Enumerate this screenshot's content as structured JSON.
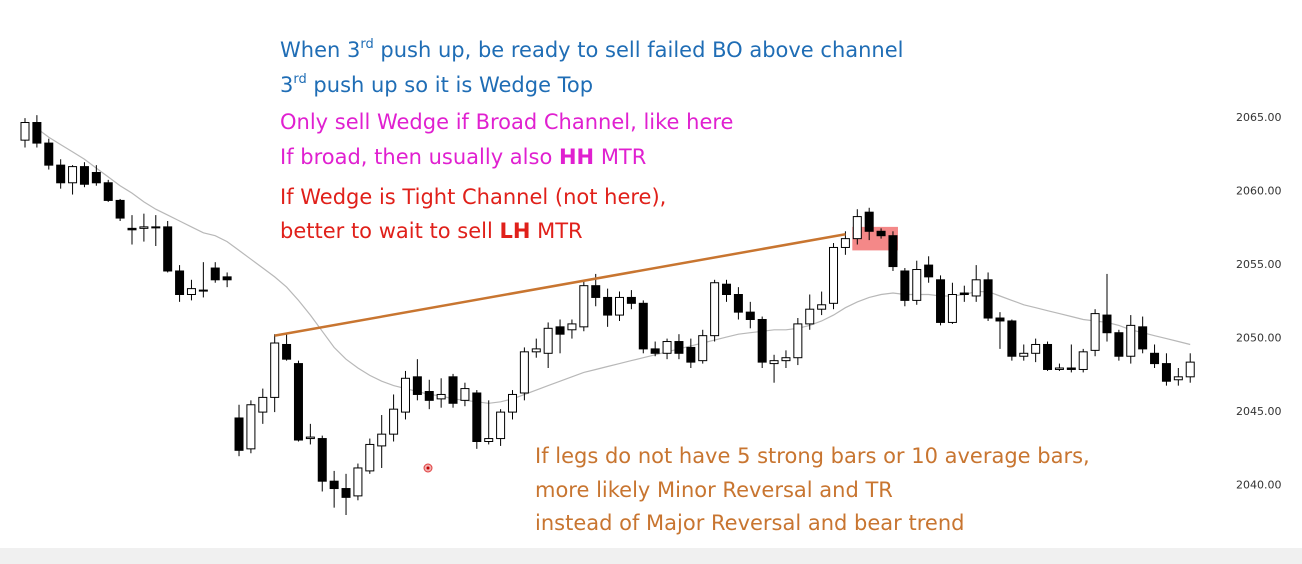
{
  "chart_data": {
    "type": "candlestick",
    "open": [
      2063.5,
      2064.7,
      2063.3,
      2061.8,
      2060.6,
      2061.7,
      2061.3,
      2060.6,
      2059.4,
      2057.5,
      2057.5,
      2057.6,
      2057.6,
      2054.6,
      2053,
      2053.3,
      2054.8,
      2054.2,
      2044.6,
      2042.5,
      2045,
      2046,
      2049.6,
      2048.3,
      2043.2,
      2043.2,
      2040.3,
      2039.8,
      2039.3,
      2041,
      2042.7,
      2043.5,
      2045,
      2047.4,
      2046.4,
      2045.9,
      2047.4,
      2045.8,
      2046.3,
      2043,
      2043.2,
      2045,
      2046.3,
      2049.1,
      2049,
      2050.8,
      2050.6,
      2050.8,
      2053.6,
      2052.8,
      2051.6,
      2052.8,
      2052.4,
      2049.3,
      2049,
      2049.8,
      2049.4,
      2048.5,
      2050.2,
      2053.7,
      2053,
      2051.8,
      2051.3,
      2048.3,
      2048.5,
      2048.7,
      2051,
      2052,
      2052.4,
      2056.2,
      2056.8,
      2058.6,
      2057.3,
      2057,
      2054.6,
      2052.6,
      2055,
      2054,
      2051.1,
      2053.1,
      2052.9,
      2054,
      2051.4,
      2051.2,
      2048.8,
      2049,
      2049.6,
      2047.9,
      2048,
      2047.9,
      2049.2,
      2051.6,
      2050.4,
      2048.8,
      2050.8,
      2049,
      2048.3,
      2047.2,
      2047.4
    ],
    "high": [
      2065,
      2065.2,
      2063.6,
      2062.2,
      2061.8,
      2062,
      2061.8,
      2060.8,
      2059.5,
      2058.4,
      2058.5,
      2058.4,
      2058,
      2055,
      2054,
      2055.2,
      2055.2,
      2054.5,
      2045.5,
      2045.8,
      2046.6,
      2050.3,
      2050.3,
      2048.5,
      2044.2,
      2043.4,
      2041,
      2040.8,
      2041.5,
      2043.2,
      2044.8,
      2046.2,
      2047.8,
      2048.6,
      2047.2,
      2047.3,
      2047.6,
      2047,
      2046.5,
      2045.8,
      2045.2,
      2046.5,
      2049.4,
      2050,
      2051.1,
      2051.3,
      2051.3,
      2054,
      2054.4,
      2053.4,
      2053.2,
      2053.3,
      2052.6,
      2049.8,
      2050,
      2050.3,
      2050,
      2050.6,
      2054,
      2054,
      2053.5,
      2052.5,
      2051.5,
      2048.9,
      2049.2,
      2051.4,
      2053,
      2053.2,
      2056.5,
      2057.3,
      2058.8,
      2058.9,
      2057.5,
      2057.3,
      2054.8,
      2055.3,
      2055.6,
      2054.3,
      2053.8,
      2053.6,
      2055,
      2054.5,
      2051.8,
      2051.3,
      2049.6,
      2050,
      2049.8,
      2048.3,
      2049.6,
      2049.3,
      2052,
      2054.4,
      2050.6,
      2051.6,
      2051.5,
      2049.6,
      2049,
      2048,
      2049
    ],
    "low": [
      2063,
      2063,
      2061.5,
      2060.2,
      2059.8,
      2060.3,
      2060.4,
      2059.3,
      2058,
      2056.4,
      2056.6,
      2056.3,
      2054.5,
      2052.5,
      2052.6,
      2052.8,
      2053.8,
      2053.5,
      2042,
      2042.2,
      2044.2,
      2045,
      2048.5,
      2043,
      2042.8,
      2039.6,
      2038.5,
      2038,
      2039,
      2040.8,
      2041.2,
      2043,
      2044.5,
      2045.8,
      2045.2,
      2045.3,
      2045.3,
      2045.4,
      2042.5,
      2042.8,
      2042.7,
      2044.5,
      2045.8,
      2048.7,
      2048,
      2049,
      2050,
      2050.5,
      2052.2,
      2050.8,
      2051.2,
      2052,
      2049,
      2048.8,
      2048.6,
      2048.6,
      2048,
      2048.3,
      2049.8,
      2052.5,
      2051.3,
      2050.7,
      2048,
      2047,
      2048,
      2048.2,
      2050.6,
      2051.6,
      2052,
      2055.7,
      2056.4,
      2056.7,
      2056.8,
      2054.6,
      2052.2,
      2052.3,
      2053.8,
      2050.9,
      2051,
      2052.5,
      2052.5,
      2051.2,
      2049.3,
      2048.5,
      2048.5,
      2048.4,
      2047.8,
      2047.8,
      2047.7,
      2047.7,
      2048.8,
      2049.8,
      2048.5,
      2048.3,
      2049,
      2048,
      2046.8,
      2046.8,
      2047
    ],
    "close": [
      2064.7,
      2063.3,
      2061.8,
      2060.6,
      2061.7,
      2060.5,
      2060.6,
      2059.4,
      2058.2,
      2057.4,
      2057.6,
      2057.6,
      2054.6,
      2053,
      2053.4,
      2053.3,
      2054,
      2054,
      2042.4,
      2045.5,
      2046,
      2049.7,
      2048.6,
      2043.1,
      2043.3,
      2040.3,
      2039.8,
      2039.2,
      2041.2,
      2042.8,
      2043.5,
      2045.2,
      2047.3,
      2046.2,
      2045.8,
      2046.2,
      2045.6,
      2046.6,
      2043,
      2043.2,
      2045,
      2046.2,
      2049.1,
      2049.3,
      2050.7,
      2050.3,
      2051,
      2053.6,
      2052.8,
      2051.6,
      2052.8,
      2052.4,
      2049.3,
      2049,
      2049.8,
      2049,
      2048.4,
      2050.2,
      2053.8,
      2053,
      2051.8,
      2051.3,
      2048.4,
      2048.5,
      2048.7,
      2051,
      2052,
      2052.3,
      2056.2,
      2056.8,
      2058.3,
      2057.3,
      2057,
      2054.9,
      2052.6,
      2054.7,
      2054.2,
      2051.1,
      2053,
      2053,
      2054,
      2051.4,
      2051.2,
      2048.8,
      2049,
      2049.6,
      2047.9,
      2048,
      2047.9,
      2049.1,
      2051.7,
      2050.4,
      2048.8,
      2050.9,
      2049.3,
      2048.3,
      2047.1,
      2047.4,
      2048.4
    ],
    "ma": {
      "color": "#b8b8b8",
      "values": [
        null,
        2064.3,
        2063.7,
        2063.2,
        2062.7,
        2062.2,
        2061.6,
        2061.0,
        2060.4,
        2059.9,
        2059.3,
        2058.8,
        2058.4,
        2058.0,
        2057.6,
        2057.2,
        2057.0,
        2056.6,
        2056.0,
        2055.4,
        2054.8,
        2054.2,
        2053.5,
        2052.6,
        2051.6,
        2050.5,
        2049.4,
        2048.6,
        2048.0,
        2047.5,
        2047.1,
        2046.8,
        2046.6,
        2046.4,
        2046.2,
        2046.1,
        2045.9,
        2045.8,
        2045.7,
        2045.6,
        2045.7,
        2045.9,
        2046.2,
        2046.5,
        2046.8,
        2047.1,
        2047.4,
        2047.7,
        2047.9,
        2048.1,
        2048.3,
        2048.5,
        2048.7,
        2048.9,
        2049.1,
        2049.3,
        2049.5,
        2049.7,
        2049.9,
        2050.1,
        2050.3,
        2050.4,
        2050.5,
        2050.6,
        2050.6,
        2050.7,
        2050.9,
        2051.2,
        2051.6,
        2052.1,
        2052.5,
        2052.8,
        2053.0,
        2053.1,
        2053.0,
        2053.0,
        2053.0,
        2052.9,
        2052.9,
        2053.0,
        2053.2,
        2053.2,
        2052.9,
        2052.6,
        2052.3,
        2052.1,
        2051.9,
        2051.7,
        2051.5,
        2051.3,
        2051.2,
        2051.1,
        2050.9,
        2050.6,
        2050.4,
        2050.2,
        2050.0,
        2049.8,
        2049.6
      ]
    },
    "trendline": {
      "color": "#c87530",
      "x": [
        21,
        69
      ],
      "values": [
        2050.2,
        2057.1
      ]
    },
    "highlight": {
      "color": "#f06060",
      "x": [
        70,
        73
      ],
      "values": [
        2057.6,
        2056.0
      ]
    },
    "ylim": [
      2038,
      2068
    ],
    "yticks": [
      {
        "value": 2040,
        "label": "2040.00"
      },
      {
        "value": 2045,
        "label": "2045.00"
      },
      {
        "value": 2050,
        "label": "2050.00"
      },
      {
        "value": 2055,
        "label": "2055.00"
      },
      {
        "value": 2060,
        "label": "2060.00"
      },
      {
        "value": 2065,
        "label": "2065.00"
      }
    ],
    "annotations": [
      {
        "color": "#1f6db5",
        "parts": [
          {
            "text": "When 3"
          },
          {
            "text": "rd",
            "style": "sup"
          },
          {
            "text": " push up, be ready to sell failed BO above channel"
          }
        ]
      },
      {
        "color": "#1f6db5",
        "parts": [
          {
            "text": "3"
          },
          {
            "text": "rd",
            "style": "sup"
          },
          {
            "text": " push up so it is Wedge Top"
          }
        ]
      },
      {
        "color": "#e020d0",
        "parts": [
          {
            "text": "Only sell Wedge if Broad Channel, like here"
          }
        ]
      },
      {
        "color": "#e020d0",
        "parts": [
          {
            "text": "If broad, then usually also "
          },
          {
            "text": "HH",
            "style": "bold"
          },
          {
            "text": " MTR"
          }
        ]
      },
      {
        "color": "#e0201a",
        "parts": [
          {
            "text": "If Wedge is Tight Channel (not here),"
          }
        ]
      },
      {
        "color": "#e0201a",
        "parts": [
          {
            "text": "better to wait to sell "
          },
          {
            "text": "LH",
            "style": "bold"
          },
          {
            "text": " MTR"
          }
        ]
      },
      {
        "color": "#c87530",
        "parts": [
          {
            "text": "If legs do not have 5 strong bars or 10 average bars,"
          }
        ]
      },
      {
        "color": "#c87530",
        "parts": [
          {
            "text": "more likely Minor Reversal and TR"
          }
        ]
      },
      {
        "color": "#c87530",
        "parts": [
          {
            "text": "instead of Major Reversal and bear trend"
          }
        ]
      }
    ]
  }
}
